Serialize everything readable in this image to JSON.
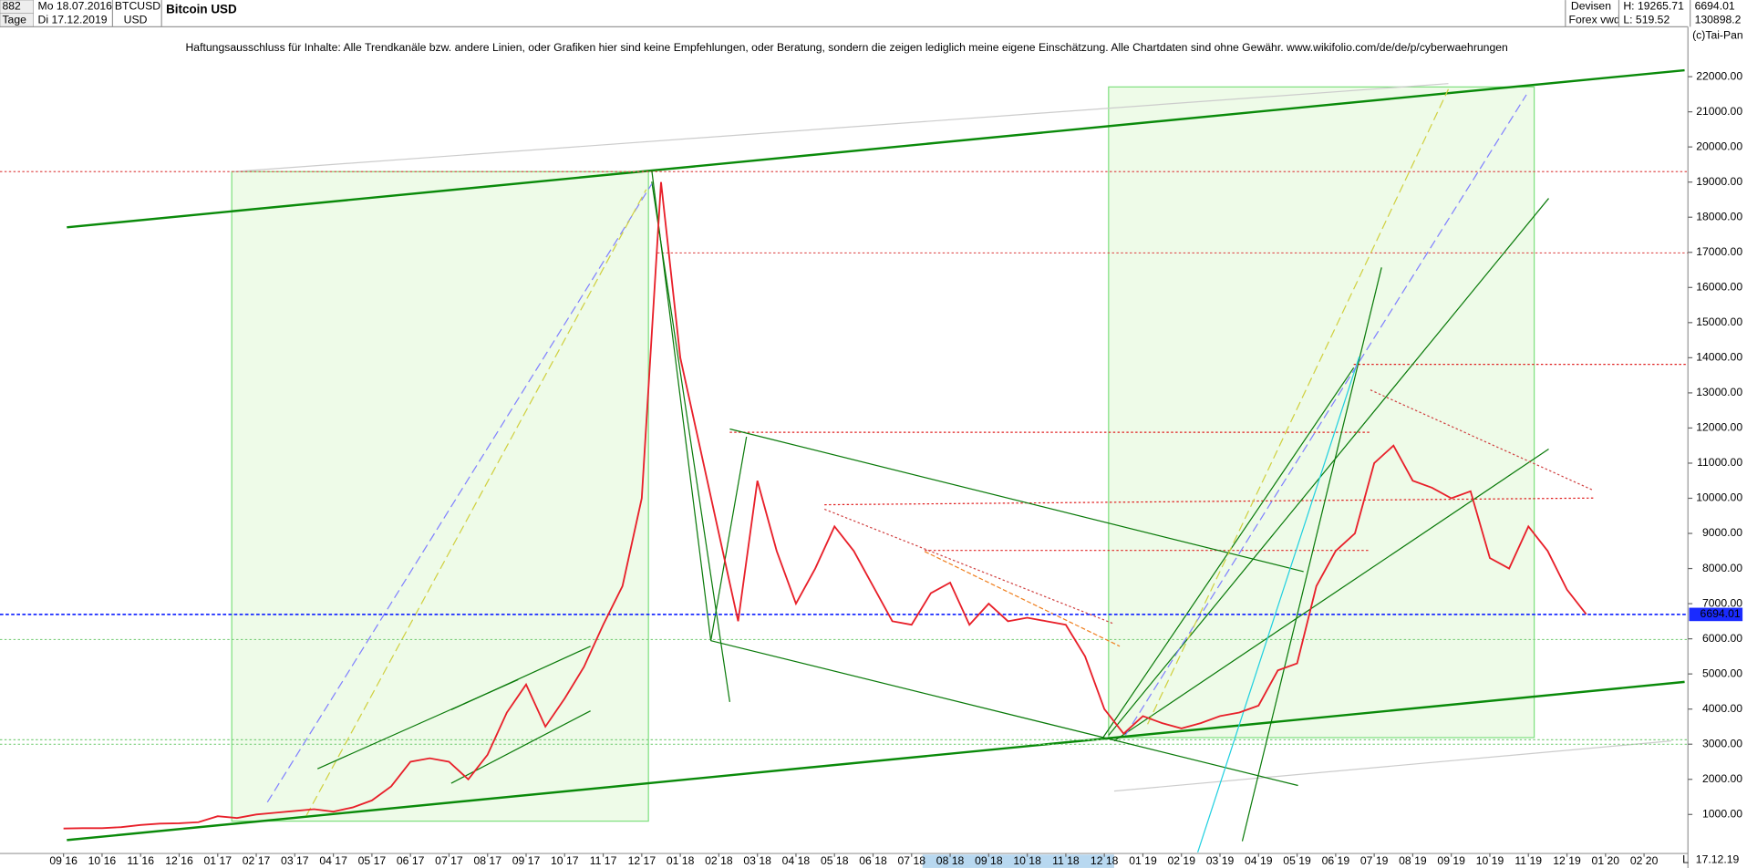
{
  "header": {
    "count": "882",
    "start": "Mo 18.07.2016",
    "symbol": "BTCUSD",
    "currency": "USD",
    "period": "Tage",
    "end": "Di 17.12.2019",
    "market": "Devisen",
    "source": "Forex vwd",
    "high": "H: 19265.71",
    "low": "L: 519.52",
    "last": "6694.01",
    "volume": "130898.2",
    "brand": "(c)Tai-Pan",
    "footer_left": "L",
    "footer_date": "17.12.19"
  },
  "chart_data": {
    "type": "line",
    "title": "Bitcoin USD",
    "annotation": "Haftungsausschluss für Inhalte: Alle Trendkanäle bzw. andere Linien, oder Grafiken hier sind keine Empfehlungen, oder Beratung, sondern die zeigen lediglich meine eigene Einschätzung. Alle Chartdaten sind ohne Gewähr.  www.wikifolio.com/de/de/p/cyberwaehrungen",
    "categories": [
      "09 16",
      null,
      "10 16",
      null,
      "11 16",
      null,
      "12 16",
      null,
      "01 17",
      null,
      "02 17",
      null,
      "03 17",
      null,
      "04 17",
      null,
      "05 17",
      null,
      "06 17",
      null,
      "07 17",
      null,
      "08 17",
      null,
      "09 17",
      null,
      "10 17",
      null,
      "11 17",
      null,
      "12 17",
      null,
      "01 18",
      null,
      "02 18",
      null,
      "03 18",
      null,
      "04 18",
      null,
      "05 18",
      null,
      "06 18",
      null,
      "07 18",
      null,
      "08 18",
      null,
      "09 18",
      null,
      "10 18",
      null,
      "11 18",
      null,
      "12 18",
      null,
      "01 19",
      null,
      "02 19",
      null,
      "03 19",
      null,
      "04 19",
      null,
      "05 19",
      null,
      "06 19",
      null,
      "07 19",
      null,
      "08 19",
      null,
      "09 19",
      null,
      "10 19",
      null,
      "11 19",
      null,
      "12 19",
      null,
      "01 20",
      null,
      "02 20"
    ],
    "series": [
      {
        "name": "BTCUSD",
        "color": "#e8202a",
        "values": [
          600,
          610,
          610,
          640,
          700,
          740,
          750,
          780,
          950,
          900,
          1000,
          1050,
          1100,
          1150,
          1080,
          1200,
          1400,
          1800,
          2500,
          2600,
          2500,
          2000,
          2700,
          3900,
          4700,
          3500,
          4300,
          5200,
          6400,
          7500,
          10000,
          19000,
          14000,
          11500,
          9000,
          6500,
          10500,
          8500,
          7000,
          8000,
          9200,
          8500,
          7500,
          6500,
          6400,
          7300,
          7600,
          6400,
          7000,
          6500,
          6600,
          6500,
          6400,
          5500,
          4000,
          3300,
          3800,
          3600,
          3450,
          3600,
          3800,
          3900,
          4100,
          5100,
          5300,
          7500,
          8500,
          9000,
          11000,
          11500,
          10500,
          10300,
          10000,
          10200,
          8300,
          8000,
          9200,
          8500,
          7400,
          6700,
          null,
          null,
          null
        ]
      }
    ],
    "reference_line": {
      "value": 6694.01,
      "label": "6694.01",
      "color": "#1a2bff"
    },
    "ylim": [
      -110,
      23420
    ],
    "yticks": [
      {
        "value": 1000,
        "label": "1000.00"
      },
      {
        "value": 2000,
        "label": "2000.00"
      },
      {
        "value": 3000,
        "label": "3000.00"
      },
      {
        "value": 4000,
        "label": "4000.00"
      },
      {
        "value": 5000,
        "label": "5000.00"
      },
      {
        "value": 6000,
        "label": "6000.00"
      },
      {
        "value": 7000,
        "label": "7000.00"
      },
      {
        "value": 8000,
        "label": "8000.00"
      },
      {
        "value": 9000,
        "label": "9000.00"
      },
      {
        "value": 10000,
        "label": "10000.00"
      },
      {
        "value": 11000,
        "label": "11000.00"
      },
      {
        "value": 12000,
        "label": "12000.00"
      },
      {
        "value": 13000,
        "label": "13000.00"
      },
      {
        "value": 14000,
        "label": "14000.00"
      },
      {
        "value": 15000,
        "label": "15000.00"
      },
      {
        "value": 16000,
        "label": "16000.00"
      },
      {
        "value": 17000,
        "label": "17000.00"
      },
      {
        "value": 18000,
        "label": "18000.00"
      },
      {
        "value": 19000,
        "label": "19000.00"
      },
      {
        "value": 20000,
        "label": "20000.00"
      },
      {
        "value": 21000,
        "label": "21000.00"
      },
      {
        "value": 22000,
        "label": "22000.00"
      }
    ]
  }
}
